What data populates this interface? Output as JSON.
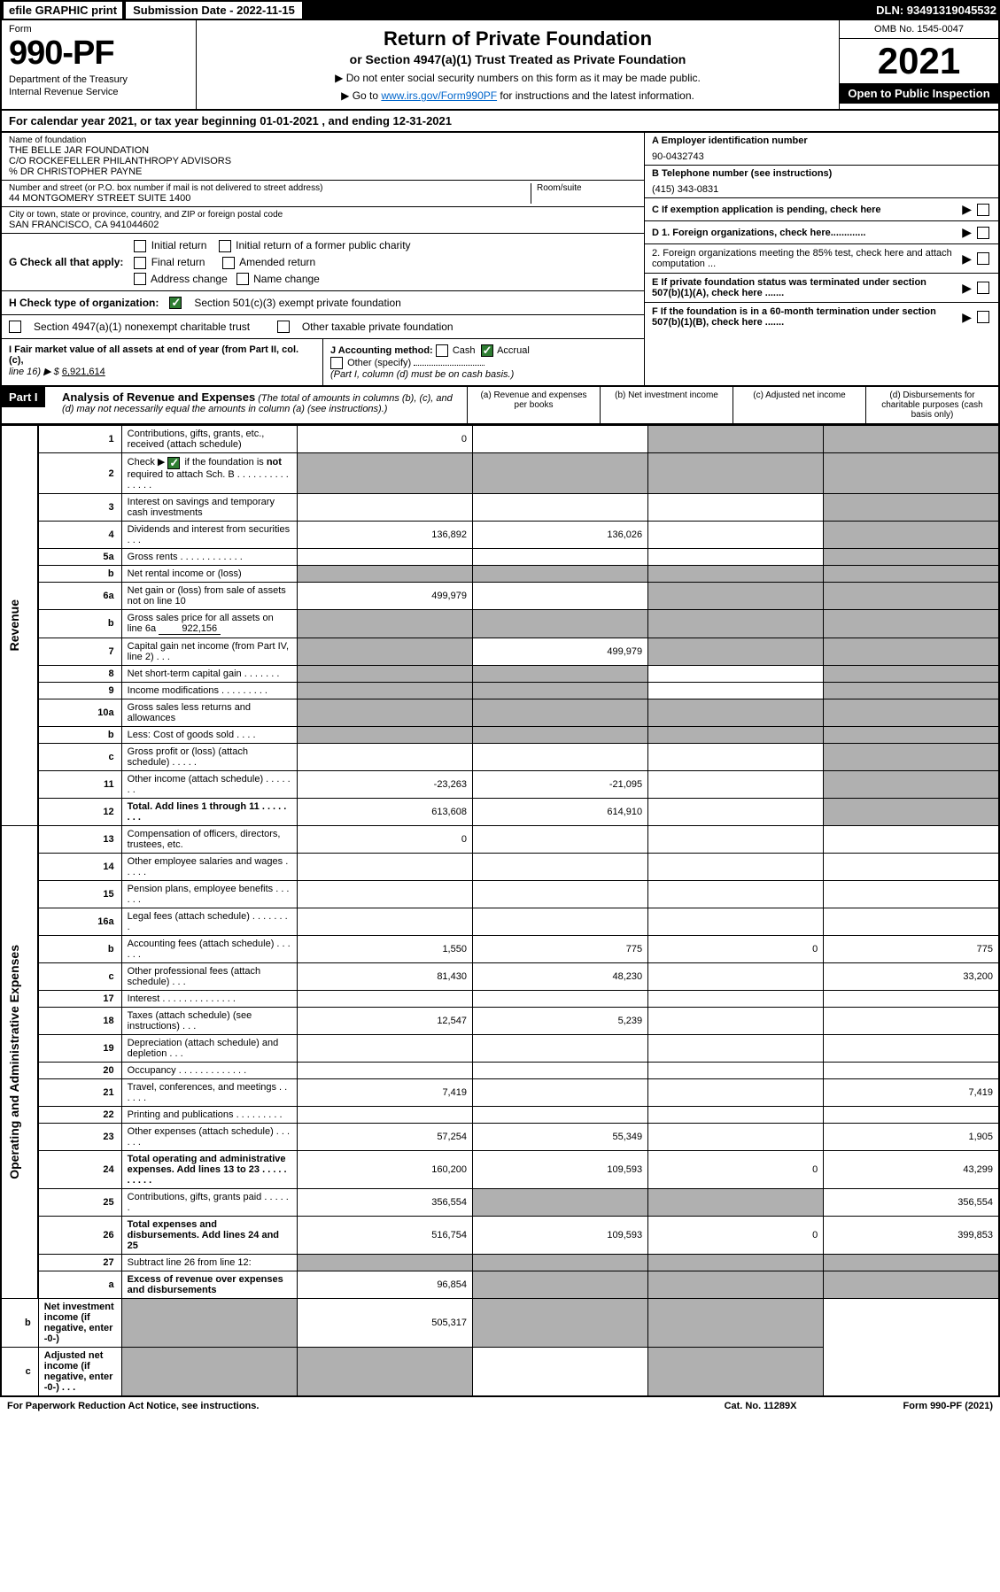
{
  "topbar": {
    "efile": "efile GRAPHIC print",
    "submission": "Submission Date - 2022-11-15",
    "dln": "DLN: 93491319045532"
  },
  "header": {
    "form_label": "Form",
    "form_no": "990-PF",
    "dept1": "Department of the Treasury",
    "dept2": "Internal Revenue Service",
    "title": "Return of Private Foundation",
    "subtitle": "or Section 4947(a)(1) Trust Treated as Private Foundation",
    "note1": "▶ Do not enter social security numbers on this form as it may be made public.",
    "note2_pre": "▶ Go to ",
    "note2_link": "www.irs.gov/Form990PF",
    "note2_post": " for instructions and the latest information.",
    "omb": "OMB No. 1545-0047",
    "year": "2021",
    "open": "Open to Public Inspection"
  },
  "calyear": "For calendar year 2021, or tax year beginning 01-01-2021            , and ending 12-31-2021",
  "foundation": {
    "name_label": "Name of foundation",
    "name1": "THE BELLE JAR FOUNDATION",
    "name2": "C/O ROCKEFELLER PHILANTHROPY ADVISORS",
    "name3": "% DR CHRISTOPHER PAYNE",
    "addr_label": "Number and street (or P.O. box number if mail is not delivered to street address)",
    "addr": "44 MONTGOMERY STREET SUITE 1400",
    "room_label": "Room/suite",
    "city_label": "City or town, state or province, country, and ZIP or foreign postal code",
    "city": "SAN FRANCISCO, CA  941044602",
    "ein_label": "A Employer identification number",
    "ein": "90-0432743",
    "phone_label": "B Telephone number (see instructions)",
    "phone": "(415) 343-0831",
    "c_label": "C If exemption application is pending, check here",
    "d1": "D 1. Foreign organizations, check here.............",
    "d2": "2. Foreign organizations meeting the 85% test, check here and attach computation ...",
    "e_label": "E  If private foundation status was terminated under section 507(b)(1)(A), check here .......",
    "f_label": "F  If the foundation is in a 60-month termination under section 507(b)(1)(B), check here .......",
    "g_label": "G Check all that apply:",
    "g_initial": "Initial return",
    "g_initial_former": "Initial return of a former public charity",
    "g_final": "Final return",
    "g_amended": "Amended return",
    "g_addr_change": "Address change",
    "g_name_change": "Name change",
    "h_label": "H Check type of organization:",
    "h_501c3": "Section 501(c)(3) exempt private foundation",
    "h_4947": "Section 4947(a)(1) nonexempt charitable trust",
    "h_other": "Other taxable private foundation",
    "i_label": "I Fair market value of all assets at end of year (from Part II, col. (c),",
    "i_line": "line 16) ▶ $",
    "i_val": "6,921,614",
    "j_label": "J Accounting method:",
    "j_cash": "Cash",
    "j_accrual": "Accrual",
    "j_other": "Other (specify)",
    "j_note": "(Part I, column (d) must be on cash basis.)"
  },
  "part1": {
    "label": "Part I",
    "title": "Analysis of Revenue and Expenses",
    "note": " (The total of amounts in columns (b), (c), and (d) may not necessarily equal the amounts in column (a) (see instructions).)",
    "col_a": "(a)   Revenue and expenses per books",
    "col_b": "(b)   Net investment income",
    "col_c": "(c)   Adjusted net income",
    "col_d": "(d)   Disbursements for charitable purposes (cash basis only)"
  },
  "sides": {
    "revenue": "Revenue",
    "expenses": "Operating and Administrative Expenses"
  },
  "rows": [
    {
      "n": "1",
      "d": "Contributions, gifts, grants, etc., received (attach schedule)",
      "a": "0"
    },
    {
      "n": "2",
      "d": "Check ▶ ☑ if the foundation is not required to attach Sch. B   .   .   .   .   .   .   .   .   .   .   .   .   .   .   ."
    },
    {
      "n": "3",
      "d": "Interest on savings and temporary cash investments"
    },
    {
      "n": "4",
      "d": "Dividends and interest from securities    .   .   .",
      "a": "136,892",
      "b": "136,026"
    },
    {
      "n": "5a",
      "d": "Gross rents   .   .   .   .   .   .   .   .   .   .   .   ."
    },
    {
      "n": "b",
      "d": "Net rental income or (loss)"
    },
    {
      "n": "6a",
      "d": "Net gain or (loss) from sale of assets not on line 10",
      "a": "499,979"
    },
    {
      "n": "b",
      "d": "Gross sales price for all assets on line 6a",
      "inline": "922,156"
    },
    {
      "n": "7",
      "d": "Capital gain net income (from Part IV, line 2)   .   .   .",
      "b": "499,979"
    },
    {
      "n": "8",
      "d": "Net short-term capital gain   .   .   .   .   .   .   ."
    },
    {
      "n": "9",
      "d": "Income modifications   .   .   .   .   .   .   .   .   ."
    },
    {
      "n": "10a",
      "d": "Gross sales less returns and allowances"
    },
    {
      "n": "b",
      "d": "Less: Cost of goods sold   .   .   .   ."
    },
    {
      "n": "c",
      "d": "Gross profit or (loss) (attach schedule)   .   .   .   .   ."
    },
    {
      "n": "11",
      "d": "Other income (attach schedule)   .   .   .   .   .   .   .",
      "a": "-23,263",
      "b": "-21,095"
    },
    {
      "n": "12",
      "d": "Total. Add lines 1 through 11   .   .   .   .   .   .   .   .",
      "a": "613,608",
      "b": "614,910",
      "bold": true
    },
    {
      "n": "13",
      "d": "Compensation of officers, directors, trustees, etc.",
      "a": "0"
    },
    {
      "n": "14",
      "d": "Other employee salaries and wages   .   .   .   .   ."
    },
    {
      "n": "15",
      "d": "Pension plans, employee benefits   .   .   .   .   .   ."
    },
    {
      "n": "16a",
      "d": "Legal fees (attach schedule)   .   .   .   .   .   .   .   ."
    },
    {
      "n": "b",
      "d": "Accounting fees (attach schedule)   .   .   .   .   .   .",
      "a": "1,550",
      "b": "775",
      "c": "0",
      "dd": "775"
    },
    {
      "n": "c",
      "d": "Other professional fees (attach schedule)   .   .   .",
      "a": "81,430",
      "b": "48,230",
      "dd": "33,200"
    },
    {
      "n": "17",
      "d": "Interest   .   .   .   .   .   .   .   .   .   .   .   .   .   ."
    },
    {
      "n": "18",
      "d": "Taxes (attach schedule) (see instructions)   .   .   .",
      "a": "12,547",
      "b": "5,239"
    },
    {
      "n": "19",
      "d": "Depreciation (attach schedule) and depletion   .   .   ."
    },
    {
      "n": "20",
      "d": "Occupancy   .   .   .   .   .   .   .   .   .   .   .   .   ."
    },
    {
      "n": "21",
      "d": "Travel, conferences, and meetings   .   .   .   .   .   .",
      "a": "7,419",
      "dd": "7,419"
    },
    {
      "n": "22",
      "d": "Printing and publications   .   .   .   .   .   .   .   .   ."
    },
    {
      "n": "23",
      "d": "Other expenses (attach schedule)   .   .   .   .   .   .",
      "a": "57,254",
      "b": "55,349",
      "dd": "1,905"
    },
    {
      "n": "24",
      "d": "Total operating and administrative expenses. Add lines 13 to 23   .   .   .   .   .   .   .   .   .   .",
      "a": "160,200",
      "b": "109,593",
      "c": "0",
      "dd": "43,299",
      "bold": true
    },
    {
      "n": "25",
      "d": "Contributions, gifts, grants paid   .   .   .   .   .   .",
      "a": "356,554",
      "dd": "356,554"
    },
    {
      "n": "26",
      "d": "Total expenses and disbursements. Add lines 24 and 25",
      "a": "516,754",
      "b": "109,593",
      "c": "0",
      "dd": "399,853",
      "bold": true
    },
    {
      "n": "27",
      "d": "Subtract line 26 from line 12:"
    },
    {
      "n": "a",
      "d": "Excess of revenue over expenses and disbursements",
      "a": "96,854",
      "bold": true
    },
    {
      "n": "b",
      "d": "Net investment income (if negative, enter -0-)",
      "b": "505,317",
      "bold": true
    },
    {
      "n": "c",
      "d": "Adjusted net income (if negative, enter -0-)   .   .   .",
      "bold": true
    }
  ],
  "footer": {
    "left": "For Paperwork Reduction Act Notice, see instructions.",
    "mid": "Cat. No. 11289X",
    "right": "Form 990-PF (2021)"
  }
}
